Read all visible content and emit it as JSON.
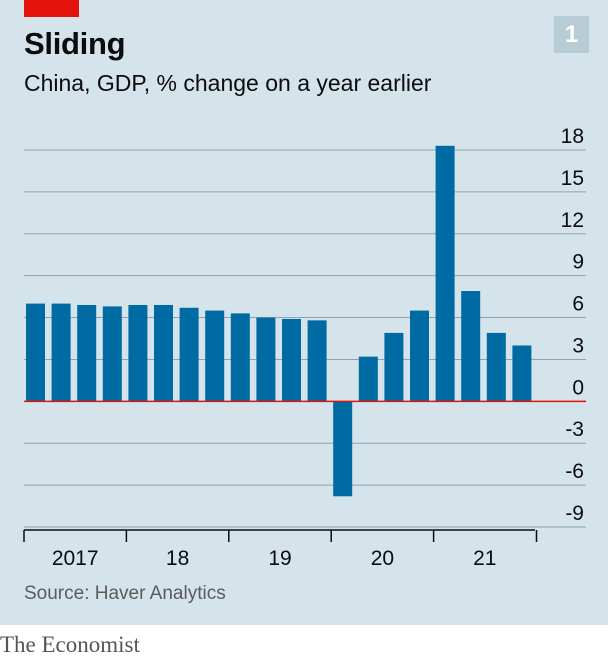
{
  "header": {
    "title": "Sliding",
    "subtitle": "China, GDP, % change on a year earlier",
    "chart_number": "1"
  },
  "footer": {
    "source": "Source: Haver Analytics",
    "brand": "The Economist"
  },
  "colors": {
    "bar": "#006ba2",
    "zero_line": "#e3120b",
    "grid": "#8ba4b1",
    "background": "#d5e4eb"
  },
  "chart_data": {
    "type": "bar",
    "title": "Sliding",
    "subtitle": "China, GDP, % change on a year earlier",
    "xlabel": "",
    "ylabel": "",
    "x_year_labels": [
      "2017",
      "18",
      "19",
      "20",
      "21"
    ],
    "categories": [
      "2017 Q1",
      "2017 Q2",
      "2017 Q3",
      "2017 Q4",
      "2018 Q1",
      "2018 Q2",
      "2018 Q3",
      "2018 Q4",
      "2019 Q1",
      "2019 Q2",
      "2019 Q3",
      "2019 Q4",
      "2020 Q1",
      "2020 Q2",
      "2020 Q3",
      "2020 Q4",
      "2021 Q1",
      "2021 Q2",
      "2021 Q3",
      "2021 Q4"
    ],
    "values": [
      7.0,
      7.0,
      6.9,
      6.8,
      6.9,
      6.9,
      6.7,
      6.5,
      6.3,
      6.0,
      5.9,
      5.8,
      -6.8,
      3.2,
      4.9,
      6.5,
      18.3,
      7.9,
      4.9,
      4.0
    ],
    "ylim": [
      -9,
      18
    ],
    "yticks": [
      18,
      15,
      12,
      9,
      6,
      3,
      0,
      -3,
      -6,
      -9
    ],
    "y_tick_labels": [
      "18",
      "15",
      "12",
      "9",
      "6",
      "3",
      "0",
      "-3",
      "-6",
      "-9"
    ],
    "grid": true,
    "y_axis_side": "right"
  }
}
